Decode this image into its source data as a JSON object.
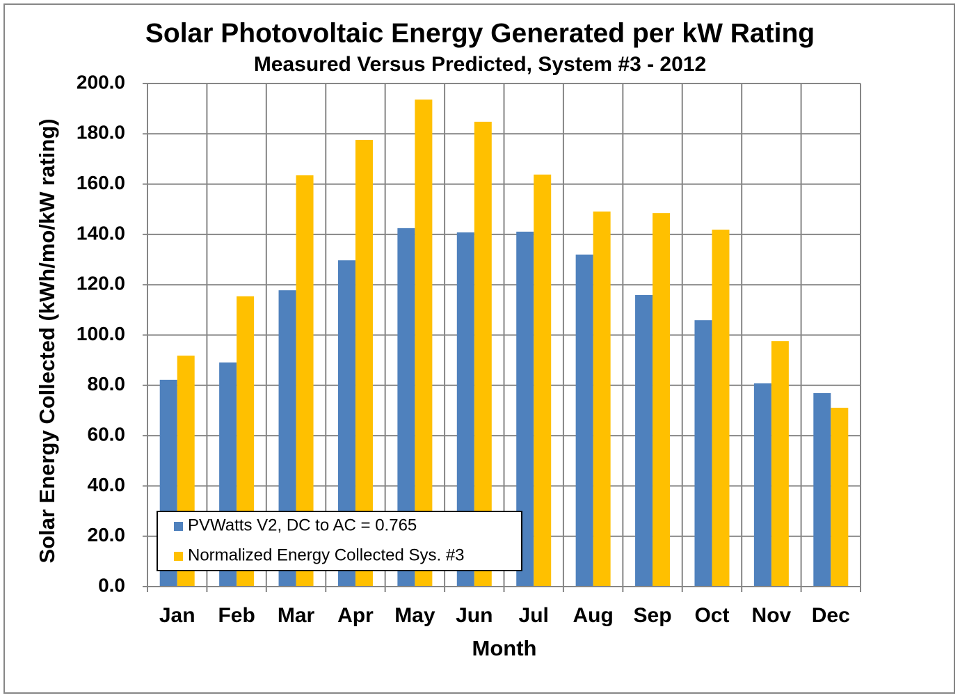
{
  "chart_data": {
    "type": "bar",
    "title": "Solar Photovoltaic Energy Generated per kW Rating",
    "subtitle": "Measured Versus Predicted, System #3 - 2012",
    "x_label": "Month",
    "y_label": "Solar Energy Collected (kWh/mo/kW rating)",
    "categories": [
      "Jan",
      "Feb",
      "Mar",
      "Apr",
      "May",
      "Jun",
      "Jul",
      "Aug",
      "Sep",
      "Oct",
      "Nov",
      "Dec"
    ],
    "series": [
      {
        "name": "PVWatts V2, DC to AC = 0.765",
        "color": "#4f81bd",
        "values": [
          82.2,
          89.1,
          117.8,
          129.7,
          142.5,
          140.8,
          141.1,
          132.0,
          115.9,
          105.9,
          80.8,
          76.9
        ]
      },
      {
        "name": "Normalized Energy Collected Sys. #3",
        "color": "#ffc000",
        "values": [
          91.8,
          115.4,
          163.5,
          177.6,
          193.6,
          184.8,
          163.8,
          149.1,
          148.5,
          141.9,
          97.6,
          71.1
        ]
      }
    ],
    "ylim": [
      0,
      200
    ],
    "yticks": [
      {
        "value": 0,
        "label": "0.0"
      },
      {
        "value": 20,
        "label": "20.0"
      },
      {
        "value": 40,
        "label": "40.0"
      },
      {
        "value": 60,
        "label": "60.0"
      },
      {
        "value": 80,
        "label": "80.0"
      },
      {
        "value": 100,
        "label": "100.0"
      },
      {
        "value": 120,
        "label": "120.0"
      },
      {
        "value": 140,
        "label": "140.0"
      },
      {
        "value": 160,
        "label": "160.0"
      },
      {
        "value": 180,
        "label": "180.0"
      },
      {
        "value": 200,
        "label": "200.0"
      }
    ],
    "grid": true,
    "legend": "bottom-left"
  }
}
